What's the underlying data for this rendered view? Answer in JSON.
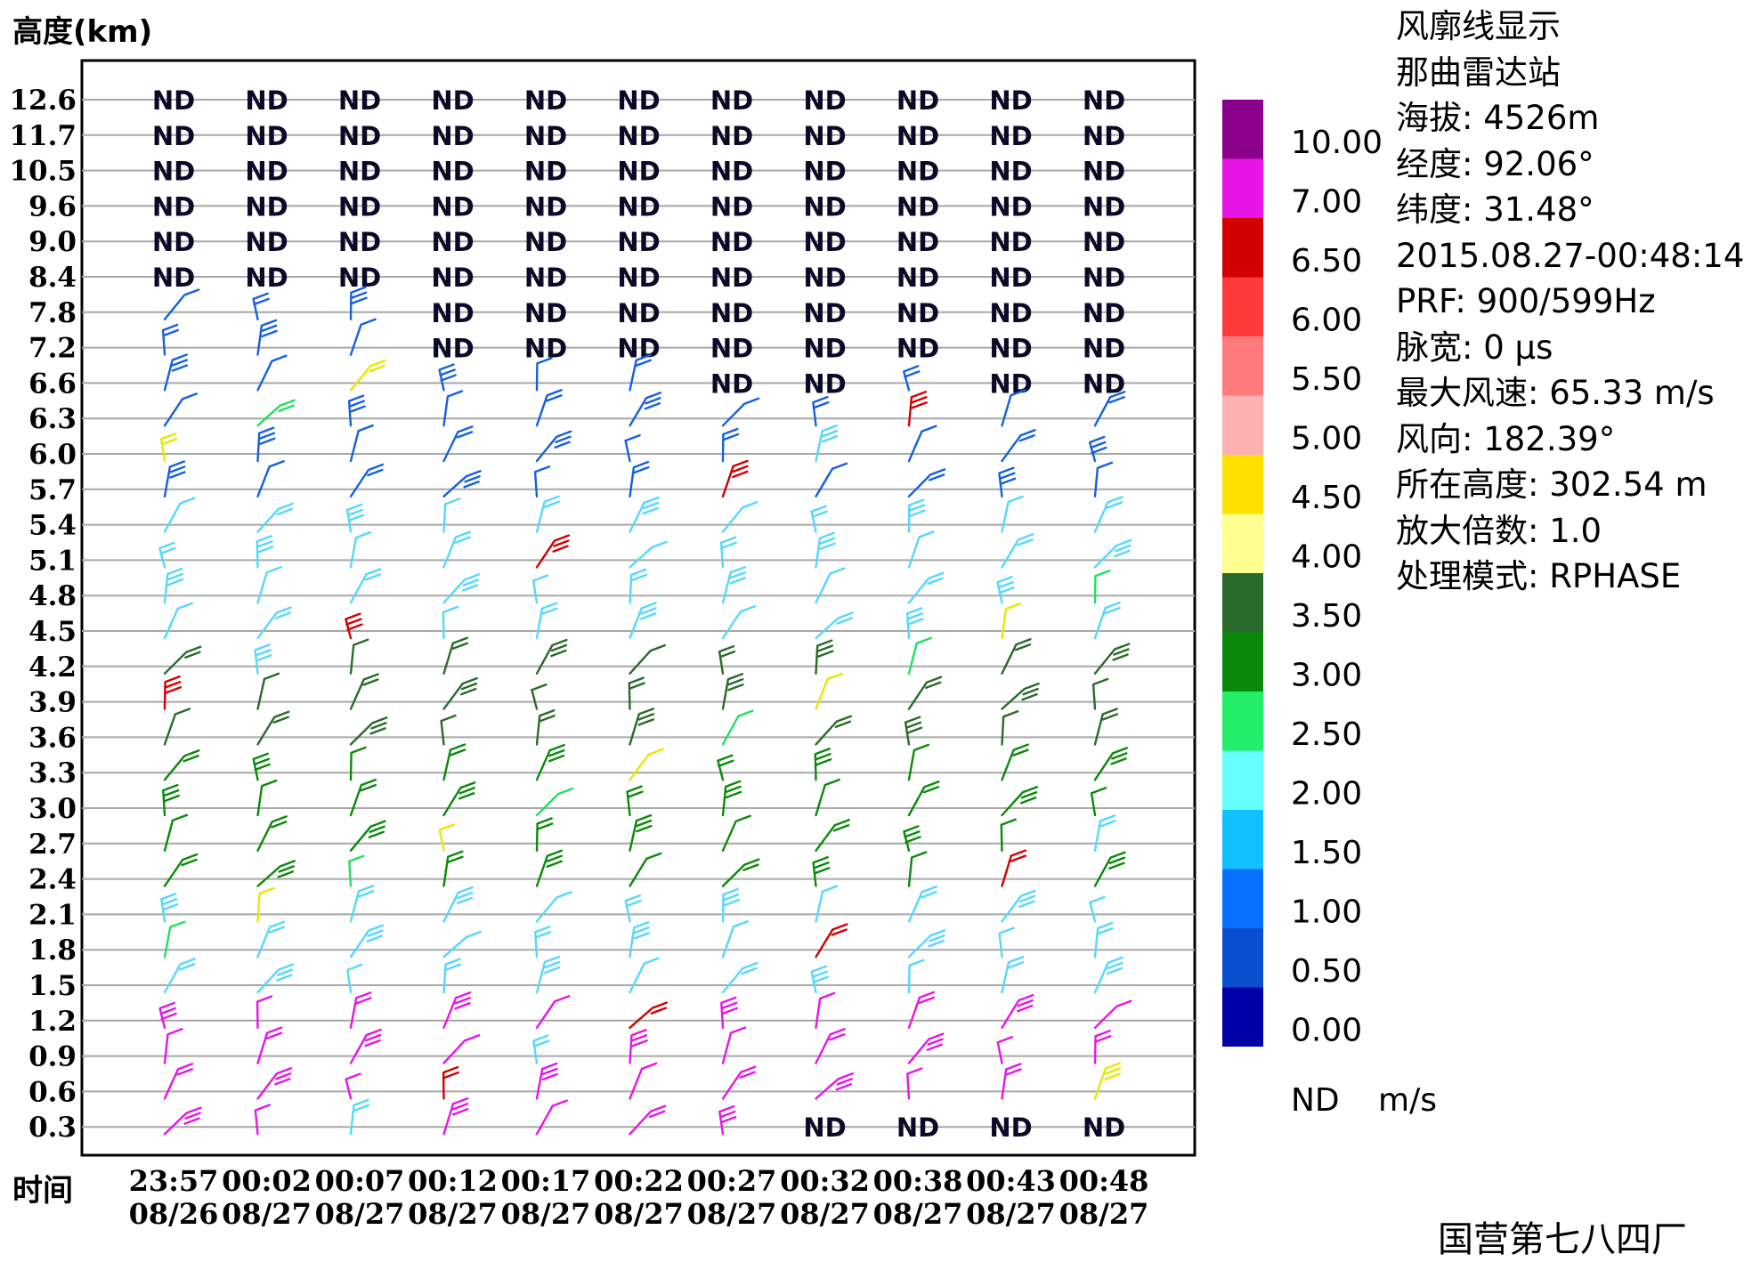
{
  "y_axis_label": "高度(km)",
  "x_axis_label": "时间",
  "info_panel": [
    "风廓线显示",
    "那曲雷达站",
    "海拔: 4526m",
    "经度: 92.06°",
    "纬度: 31.48°",
    "2015.08.27-00:48:14",
    "PRF: 900/599Hz",
    "脉宽: 0 μs",
    "最大风速: 65.33 m/s",
    "风向: 182.39°",
    "所在高度: 302.54 m",
    "放大倍数: 1.0",
    "处理模式: RPHASE"
  ],
  "footer": "国营第七八四厂",
  "chart_data": {
    "type": "wind_profile",
    "y_ticks": [
      "12.6",
      "11.7",
      "10.5",
      "9.6",
      "9.0",
      "8.4",
      "7.8",
      "7.2",
      "6.6",
      "6.3",
      "6.0",
      "5.7",
      "5.4",
      "5.1",
      "4.8",
      "4.5",
      "4.2",
      "3.9",
      "3.6",
      "3.3",
      "3.0",
      "2.7",
      "2.4",
      "2.1",
      "1.8",
      "1.5",
      "1.2",
      "0.9",
      "0.6",
      "0.3"
    ],
    "x_ticks": [
      {
        "time": "23:57",
        "date": "08/26"
      },
      {
        "time": "00:02",
        "date": "08/27"
      },
      {
        "time": "00:07",
        "date": "08/27"
      },
      {
        "time": "00:12",
        "date": "08/27"
      },
      {
        "time": "00:17",
        "date": "08/27"
      },
      {
        "time": "00:22",
        "date": "08/27"
      },
      {
        "time": "00:27",
        "date": "08/27"
      },
      {
        "time": "00:32",
        "date": "08/27"
      },
      {
        "time": "00:38",
        "date": "08/27"
      },
      {
        "time": "00:43",
        "date": "08/27"
      },
      {
        "time": "00:48",
        "date": "08/27"
      }
    ],
    "nd_label": "ND",
    "nd_levels_per_column": [
      6,
      6,
      6,
      8,
      8,
      8,
      9,
      9,
      8,
      9,
      9
    ],
    "nd_low_level": {
      "level": "0.3",
      "columns": [
        7,
        8,
        9,
        10
      ]
    },
    "color_scale": {
      "labels": [
        "10.00",
        "7.00",
        "6.50",
        "6.00",
        "5.50",
        "5.00",
        "4.50",
        "4.00",
        "3.50",
        "3.00",
        "2.50",
        "2.00",
        "1.50",
        "1.00",
        "0.50",
        "0.00"
      ],
      "colors": [
        "#8b008b",
        "#e815e8",
        "#d20000",
        "#ff3a3a",
        "#ff7a7a",
        "#ffb0b0",
        "#ffe000",
        "#ffff90",
        "#2a6a2a",
        "#0a8a0a",
        "#22f06a",
        "#66ffff",
        "#10c0ff",
        "#0a70ff",
        "#0a4fd0",
        "#0000a8"
      ],
      "nd_label": "ND",
      "unit": "m/s"
    },
    "barb_colors": {
      "darkgreen": "#2a6a2a",
      "green": "#0a8a0a",
      "lime": "#22e060",
      "cyan": "#55d8ff",
      "blue": "#1560e0",
      "magenta": "#e815e8",
      "red": "#d20000",
      "yellow": "#e8e800"
    },
    "barb_bands": [
      {
        "from": "7.8",
        "to": "6.3",
        "color": "blue"
      },
      {
        "from": "6.0",
        "to": "5.7",
        "color": "blue"
      },
      {
        "from": "5.4",
        "to": "4.5",
        "color": "cyan"
      },
      {
        "from": "4.2",
        "to": "3.6",
        "color": "darkgreen"
      },
      {
        "from": "3.3",
        "to": "2.4",
        "color": "green"
      },
      {
        "from": "2.1",
        "to": "1.5",
        "color": "cyan"
      },
      {
        "from": "1.2",
        "to": "0.3",
        "color": "magenta"
      }
    ]
  }
}
